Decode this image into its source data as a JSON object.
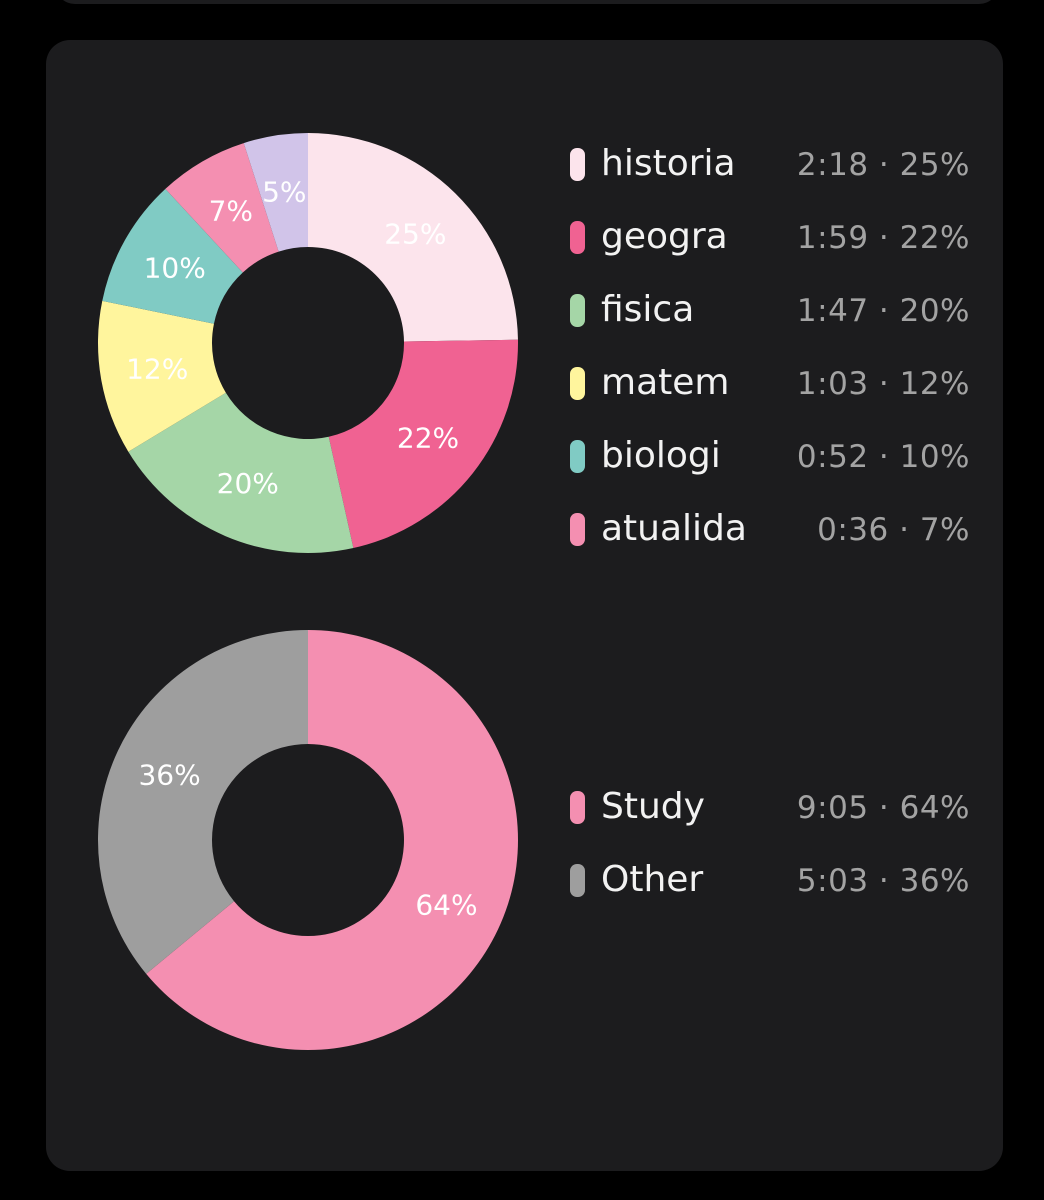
{
  "chart_data": [
    {
      "type": "pie",
      "donut": true,
      "series": [
        {
          "values": [
            {
              "label": "historia",
              "value": 25,
              "percent_label": "25%",
              "time": "2:18",
              "legend_pct": "25%",
              "color": "#fce4ec"
            },
            {
              "label": "geogra",
              "value": 22,
              "percent_label": "22%",
              "time": "1:59",
              "legend_pct": "22%",
              "color": "#f06292"
            },
            {
              "label": "fisica",
              "value": 20,
              "percent_label": "20%",
              "time": "1:47",
              "legend_pct": "20%",
              "color": "#a5d6a7"
            },
            {
              "label": "matem",
              "value": 12,
              "percent_label": "12%",
              "time": "1:03",
              "legend_pct": "12%",
              "color": "#fff59d"
            },
            {
              "label": "biologi",
              "value": 10,
              "percent_label": "10%",
              "time": "0:52",
              "legend_pct": "10%",
              "color": "#80cbc4"
            },
            {
              "label": "atualida",
              "value": 7,
              "percent_label": "7%",
              "time": "0:36",
              "legend_pct": "7%",
              "color": "#f48fb1"
            },
            {
              "label": "",
              "value": 5,
              "percent_label": "5%",
              "color": "#d1c4e9"
            }
          ]
        }
      ]
    },
    {
      "type": "pie",
      "donut": true,
      "series": [
        {
          "values": [
            {
              "label": "Study",
              "value": 64,
              "percent_label": "64%",
              "time": "9:05",
              "legend_pct": "64%",
              "color": "#f48fb1"
            },
            {
              "label": "Other",
              "value": 36,
              "percent_label": "36%",
              "time": "5:03",
              "legend_pct": "36%",
              "color": "#9e9e9e"
            }
          ]
        }
      ]
    }
  ],
  "colors": {
    "background": "#000000",
    "card": "#1c1c1e",
    "legend_text": "#f2f2f2",
    "legend_stats": "#a3a3a3"
  }
}
